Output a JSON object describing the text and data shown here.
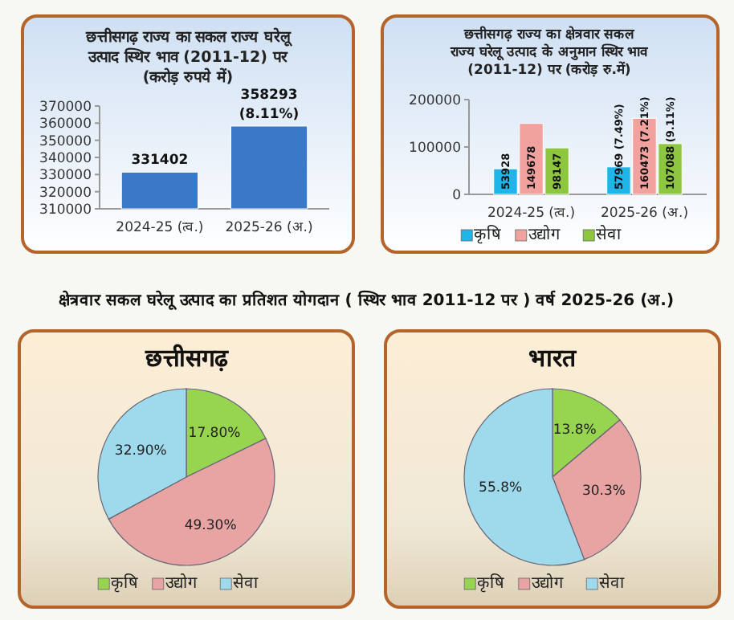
{
  "chart_data": [
    {
      "type": "bar",
      "title": "छत्तीसगढ़ राज्य का सकल राज्य घरेलू उत्पाद स्थिर भाव (2011-12) पर (करोड़ रुपये में)",
      "categories": [
        "2024-25 (त्व.)",
        "2025-26 (अ.)"
      ],
      "values": [
        331402,
        358293
      ],
      "value_labels": [
        "331402",
        "358293\n(8.11%)"
      ],
      "color": "#3a78c8",
      "ylim": [
        310000,
        370000
      ],
      "yticks": [
        310000,
        320000,
        330000,
        340000,
        350000,
        360000,
        370000
      ],
      "grid": false,
      "legend": false
    },
    {
      "type": "bar",
      "title": "छत्तीसगढ़ राज्य का क्षेत्रवार सकल राज्य घरेलू उत्पाद के अनुमान स्थिर भाव (2011-12) पर (करोड़ रु.में)",
      "categories": [
        "2024-25 (त्व.)",
        "2025-26 (अ.)"
      ],
      "series": [
        {
          "name": "कृषि",
          "color": "#1fb5e8",
          "values": [
            53928,
            57969
          ],
          "value_labels": [
            "53928",
            "57969 (7.49%)"
          ]
        },
        {
          "name": "उद्योग",
          "color": "#f2a29e",
          "values": [
            149678,
            160473
          ],
          "value_labels": [
            "149678",
            "160473 (7.21%)"
          ]
        },
        {
          "name": "सेवा",
          "color": "#8dc63f",
          "values": [
            98147,
            107088
          ],
          "value_labels": [
            "98147",
            "107088 (9.11%)"
          ]
        }
      ],
      "ylim": [
        0,
        200000
      ],
      "yticks": [
        0,
        100000,
        200000
      ],
      "grid": false,
      "legend": "bottom"
    },
    {
      "type": "other",
      "title": "क्षेत्रवार सकल घरेलू उत्पाद  का प्रतिशत योगदान ( स्थिर भाव 2011-12 पर )  वर्ष 2025-26 (अ.)"
    },
    {
      "type": "pie",
      "title": "छत्तीसगढ़",
      "categories": [
        "कृषि",
        "उद्योग",
        "सेवा"
      ],
      "values": [
        17.8,
        49.3,
        32.9
      ],
      "value_labels": [
        "17.80%",
        "49.30%",
        "32.90%"
      ],
      "colors": [
        "#97d44f",
        "#e8a3a3",
        "#9fd9ec"
      ],
      "legend": "bottom"
    },
    {
      "type": "pie",
      "title": "भारत",
      "categories": [
        "कृषि",
        "उद्योग",
        "सेवा"
      ],
      "values": [
        13.8,
        30.3,
        55.8
      ],
      "value_labels": [
        "13.8%",
        "30.3%",
        "55.8%"
      ],
      "colors": [
        "#97d44f",
        "#e8a3a3",
        "#9fd9ec"
      ],
      "legend": "bottom"
    }
  ]
}
